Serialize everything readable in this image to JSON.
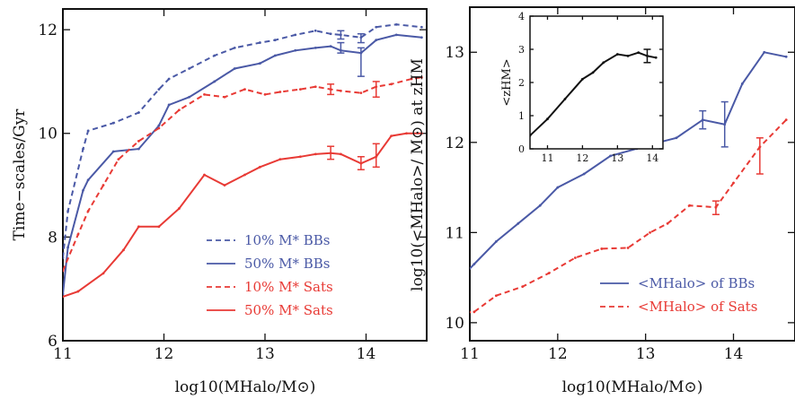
{
  "colors": {
    "blue": "#4a59a6",
    "red": "#e83a35",
    "black": "#111111",
    "frame": "#111111"
  },
  "chart_data": [
    {
      "type": "line",
      "title": "",
      "xlabel": "log10(MHalo/M⊙)",
      "ylabel": "Time−scales/Gyr",
      "xlim": [
        11.0,
        14.6
      ],
      "ylim": [
        6.0,
        12.4
      ],
      "xticks": [
        11,
        12,
        13,
        14
      ],
      "yticks": [
        6,
        8,
        10,
        12
      ],
      "legend_position": "bottom-right",
      "series": [
        {
          "name": "10% M* BBs",
          "color": "#4a59a6",
          "dash": true,
          "x": [
            11.0,
            11.05,
            11.2,
            11.25,
            11.5,
            11.75,
            11.95,
            12.05,
            12.25,
            12.5,
            12.7,
            12.95,
            13.1,
            13.3,
            13.5,
            13.65,
            13.75,
            13.95,
            14.1,
            14.3,
            14.55
          ],
          "y": [
            7.6,
            8.5,
            9.7,
            10.05,
            10.2,
            10.4,
            10.85,
            11.05,
            11.25,
            11.5,
            11.65,
            11.75,
            11.8,
            11.9,
            11.98,
            11.92,
            11.9,
            11.85,
            12.05,
            12.1,
            12.05
          ],
          "errors": [
            {
              "x": 13.75,
              "lo": 11.82,
              "hi": 11.98
            },
            {
              "x": 13.95,
              "lo": 11.75,
              "hi": 11.92
            }
          ]
        },
        {
          "name": "50% M* BBs",
          "color": "#4a59a6",
          "dash": false,
          "x": [
            11.0,
            11.05,
            11.2,
            11.25,
            11.5,
            11.75,
            11.95,
            12.05,
            12.25,
            12.5,
            12.7,
            12.95,
            13.1,
            13.3,
            13.5,
            13.65,
            13.75,
            13.95,
            14.1,
            14.3,
            14.55
          ],
          "y": [
            6.9,
            7.8,
            8.9,
            9.1,
            9.65,
            9.7,
            10.15,
            10.55,
            10.7,
            11.0,
            11.25,
            11.35,
            11.5,
            11.6,
            11.65,
            11.68,
            11.6,
            11.55,
            11.8,
            11.9,
            11.85
          ],
          "errors": [
            {
              "x": 13.75,
              "lo": 11.55,
              "hi": 11.75
            },
            {
              "x": 13.95,
              "lo": 11.1,
              "hi": 11.65
            }
          ]
        },
        {
          "name": "10% M* Sats",
          "color": "#e83a35",
          "dash": true,
          "x": [
            11.0,
            11.15,
            11.25,
            11.4,
            11.55,
            11.75,
            11.95,
            12.15,
            12.4,
            12.6,
            12.8,
            13.0,
            13.15,
            13.35,
            13.5,
            13.65,
            13.75,
            13.95,
            14.1,
            14.25,
            14.45,
            14.55
          ],
          "y": [
            7.35,
            8.05,
            8.5,
            9.0,
            9.5,
            9.85,
            10.1,
            10.45,
            10.75,
            10.7,
            10.85,
            10.75,
            10.8,
            10.85,
            10.9,
            10.85,
            10.82,
            10.78,
            10.9,
            10.95,
            11.05,
            11.08
          ],
          "errors": [
            {
              "x": 13.65,
              "lo": 10.75,
              "hi": 10.95
            },
            {
              "x": 14.1,
              "lo": 10.7,
              "hi": 11.0
            }
          ]
        },
        {
          "name": "50% M* Sats",
          "color": "#e83a35",
          "dash": false,
          "x": [
            11.0,
            11.15,
            11.4,
            11.6,
            11.75,
            11.95,
            12.15,
            12.4,
            12.6,
            12.8,
            12.95,
            13.15,
            13.35,
            13.5,
            13.65,
            13.75,
            13.95,
            14.1,
            14.25,
            14.4,
            14.55
          ],
          "y": [
            6.85,
            6.95,
            7.3,
            7.75,
            8.2,
            8.2,
            8.55,
            9.2,
            9.0,
            9.2,
            9.35,
            9.5,
            9.55,
            9.6,
            9.62,
            9.6,
            9.42,
            9.55,
            9.95,
            10.0,
            10.0
          ],
          "errors": [
            {
              "x": 13.65,
              "lo": 9.5,
              "hi": 9.75
            },
            {
              "x": 13.95,
              "lo": 9.3,
              "hi": 9.55
            },
            {
              "x": 14.1,
              "lo": 9.35,
              "hi": 9.8
            }
          ]
        }
      ],
      "legend": [
        "10% M* BBs",
        "50% M* BBs",
        "10% M* Sats",
        "50% M* Sats"
      ]
    },
    {
      "type": "line",
      "title": "",
      "xlabel": "log10(MHalo/M⊙)",
      "ylabel": "log10(<MHalo>/ M⊙) at zHM",
      "xlim": [
        11.0,
        14.7
      ],
      "ylim": [
        9.8,
        13.5
      ],
      "xticks": [
        11,
        12,
        13,
        14
      ],
      "yticks": [
        10,
        11,
        12,
        13
      ],
      "legend_position": "bottom-right",
      "series": [
        {
          "name": "<MHalo> of BBs",
          "color": "#4a59a6",
          "dash": false,
          "x": [
            10.85,
            11.05,
            11.3,
            11.55,
            11.8,
            12.0,
            12.3,
            12.6,
            12.9,
            13.15,
            13.35,
            13.65,
            13.9,
            14.1,
            14.35,
            14.6
          ],
          "y": [
            10.45,
            10.65,
            10.9,
            11.1,
            11.3,
            11.5,
            11.65,
            11.85,
            11.93,
            12.0,
            12.05,
            12.25,
            12.2,
            12.65,
            13.0,
            12.95
          ],
          "errors": [
            {
              "x": 13.65,
              "lo": 12.15,
              "hi": 12.35
            },
            {
              "x": 13.9,
              "lo": 11.95,
              "hi": 12.45
            }
          ]
        },
        {
          "name": "<MHalo> of Sats",
          "color": "#e83a35",
          "dash": true,
          "x": [
            10.85,
            11.05,
            11.3,
            11.6,
            11.9,
            12.2,
            12.5,
            12.8,
            13.05,
            13.25,
            13.5,
            13.8,
            14.0,
            14.3,
            14.6
          ],
          "y": [
            10.1,
            10.12,
            10.3,
            10.4,
            10.55,
            10.72,
            10.82,
            10.83,
            11.0,
            11.1,
            11.3,
            11.28,
            11.55,
            11.95,
            12.25
          ],
          "errors": [
            {
              "x": 13.8,
              "lo": 11.2,
              "hi": 11.35
            },
            {
              "x": 14.3,
              "lo": 11.65,
              "hi": 12.05
            }
          ]
        }
      ],
      "legend": [
        "<MHalo> of BBs",
        "<MHalo> of Sats"
      ],
      "inset": {
        "type": "line",
        "ylabel": "<zHM>",
        "xlim": [
          10.5,
          14.3
        ],
        "ylim": [
          0,
          4
        ],
        "xticks": [
          11,
          12,
          13,
          14
        ],
        "yticks": [
          0,
          1,
          2,
          3,
          4
        ],
        "series": [
          {
            "name": "",
            "color": "#111111",
            "x": [
              10.5,
              11.0,
              11.5,
              12.0,
              12.3,
              12.6,
              13.0,
              13.3,
              13.6,
              13.85,
              14.1
            ],
            "y": [
              0.4,
              0.9,
              1.5,
              2.1,
              2.3,
              2.6,
              2.85,
              2.8,
              2.9,
              2.8,
              2.75
            ],
            "errors": [
              {
                "x": 13.85,
                "lo": 2.6,
                "hi": 3.0
              }
            ]
          }
        ]
      }
    }
  ]
}
